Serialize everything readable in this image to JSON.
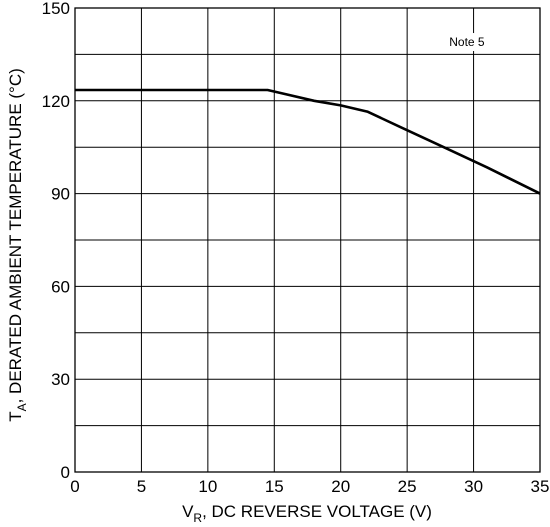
{
  "chart_data": {
    "type": "line",
    "title": "",
    "xlabel_main": "V",
    "xlabel_sub": "R",
    "xlabel_rest": ", DC REVERSE VOLTAGE (V)",
    "ylabel_main": "T",
    "ylabel_sub": "A",
    "ylabel_rest": ", DERATED AMBIENT TEMPERATURE (°C)",
    "xlim": [
      0,
      35
    ],
    "ylim": [
      0,
      150
    ],
    "grid": true,
    "x_ticks": [
      {
        "value": 0,
        "label": "0"
      },
      {
        "value": 5,
        "label": "5"
      },
      {
        "value": 10,
        "label": "10"
      },
      {
        "value": 15,
        "label": "15"
      },
      {
        "value": 20,
        "label": "20"
      },
      {
        "value": 25,
        "label": "25"
      },
      {
        "value": 30,
        "label": "30"
      },
      {
        "value": 35,
        "label": "35"
      }
    ],
    "y_ticks": [
      {
        "value": 0,
        "label": "0"
      },
      {
        "value": 30,
        "label": "30"
      },
      {
        "value": 60,
        "label": "60"
      },
      {
        "value": 90,
        "label": "90"
      },
      {
        "value": 120,
        "label": "120"
      },
      {
        "value": 150,
        "label": "150"
      }
    ],
    "x_grid_step": 5,
    "y_grid_step": 15,
    "series": [
      {
        "color": "#000000",
        "x": [
          0,
          14.5,
          16,
          18,
          20,
          22,
          25,
          28,
          31,
          35
        ],
        "y": [
          123.5,
          123.5,
          122,
          120,
          118.5,
          116.5,
          110.5,
          104.5,
          98.5,
          90
        ]
      }
    ],
    "annotations": [
      {
        "text": "Note 5",
        "x": 29.5,
        "y": 139
      }
    ]
  }
}
